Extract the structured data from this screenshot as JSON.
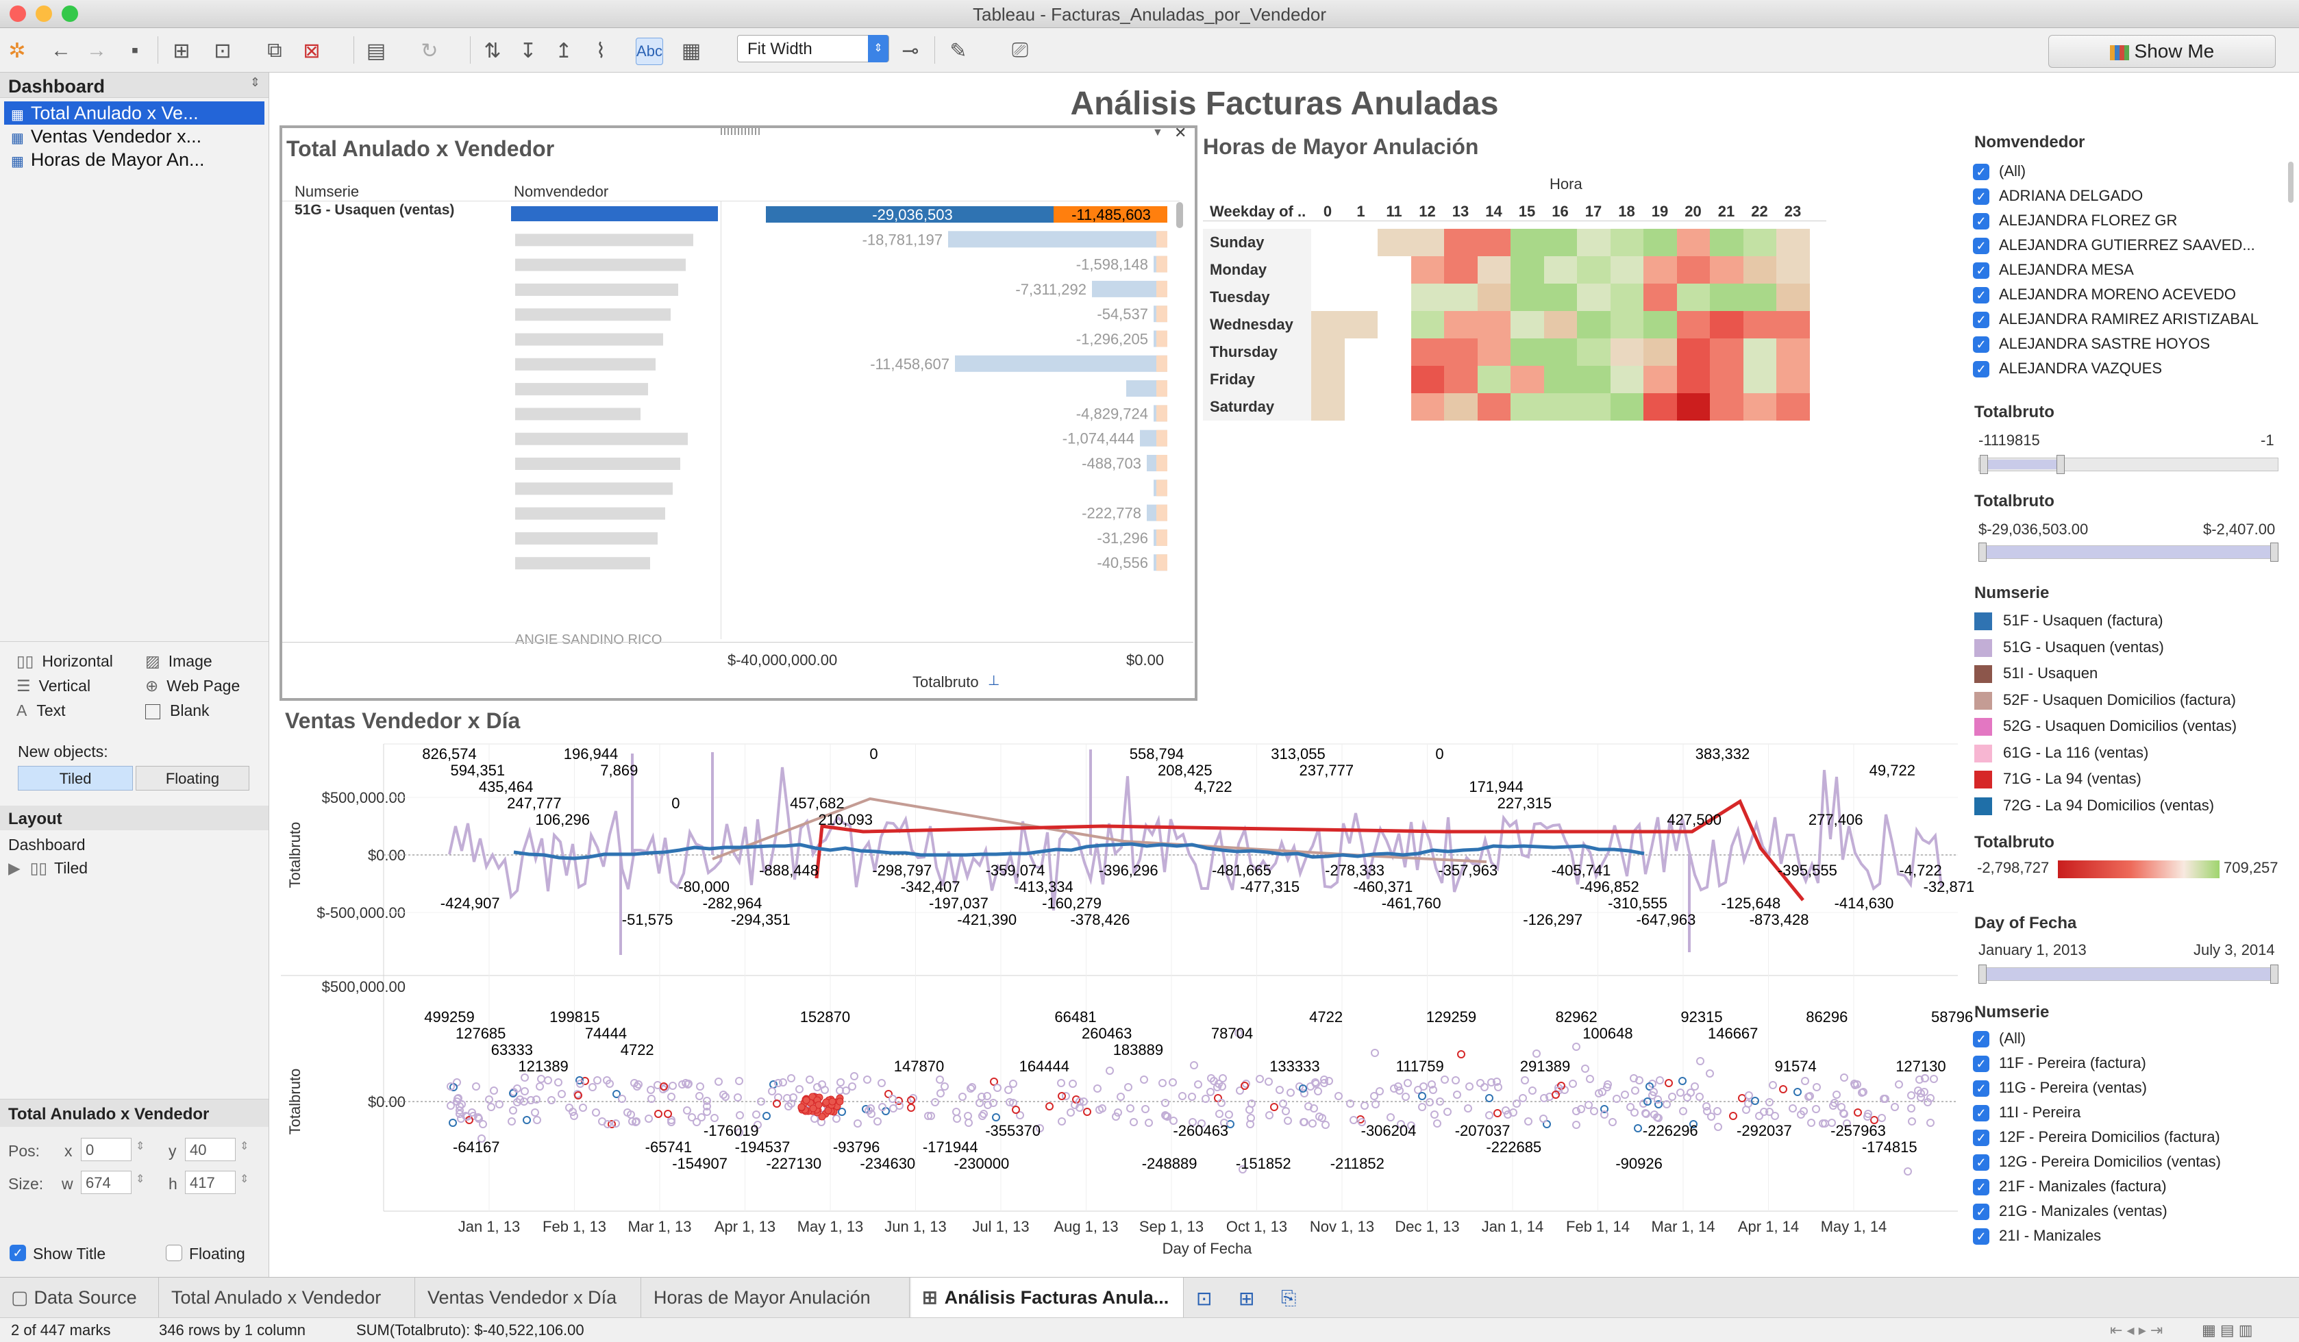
{
  "window": {
    "title": "Tableau - Facturas_Anuladas_por_Vendedor"
  },
  "toolbar": {
    "fit_value": "Fit Width",
    "show_me": "Show Me",
    "abc": "Abc"
  },
  "left_pane": {
    "dashboard_header": "Dashboard",
    "sheets": [
      "Total Anulado x Ve...",
      "Ventas Vendedor x...",
      "Horas de Mayor An..."
    ],
    "objects": [
      "Horizontal",
      "Image",
      "Vertical",
      "Web Page",
      "Text",
      "Blank"
    ],
    "new_objects_label": "New objects:",
    "tiled": "Tiled",
    "floating": "Floating",
    "layout_header": "Layout",
    "layout_tree": [
      "Dashboard",
      "Tiled"
    ],
    "selected_zone": "Total Anulado x Vendedor",
    "pos_label": "Pos:",
    "size_label": "Size:",
    "x_label": "x",
    "y_label": "y",
    "w_label": "w",
    "h_label": "h",
    "x": "0",
    "y": "40",
    "w": "674",
    "h": "417",
    "show_title": "Show Title",
    "floating_cb": "Floating"
  },
  "dashboard": {
    "title": "Análisis Facturas Anuladas"
  },
  "total_anulado": {
    "title": "Total Anulado x Vendedor",
    "col_numserie": "Numserie",
    "col_nomvendedor": "Nomvendedor",
    "numserie_value": "51G - Usaquen (ventas)",
    "last_name_partial": "ANGIE SANDINO RICO",
    "axis_left": "$-40,000,000.00",
    "axis_right": "$0.00",
    "axis_title": "Totalbruto",
    "top_bar_blue": "-29,036,503",
    "top_bar_orange": "-11,485,603",
    "values": [
      "-18,781,197",
      "-1,598,148",
      "-7,311,292",
      "-54,537",
      "-1,296,205",
      "-11,458,607",
      "",
      "-4,829,724",
      "-1,074,444",
      "-488,703",
      "",
      "-222,778",
      "-31,296",
      "-40,556"
    ]
  },
  "heatmap": {
    "title": "Horas de Mayor Anulación",
    "col_title": "Hora",
    "row_title": "Weekday of ..",
    "hours": [
      "0",
      "1",
      "11",
      "12",
      "13",
      "14",
      "15",
      "16",
      "17",
      "18",
      "19",
      "20",
      "21",
      "22",
      "23"
    ],
    "days": [
      "Sunday",
      "Monday",
      "Tuesday",
      "Wednesday",
      "Thursday",
      "Friday",
      "Saturday"
    ]
  },
  "ventas": {
    "title": "Ventas Vendedor x Día",
    "y_axis_title": "Totalbruto",
    "x_axis_title": "Day of Fecha",
    "top_ticks": [
      "$500,000.00",
      "$0.00",
      "$-500,000.00"
    ],
    "bottom_ticks": [
      "$500,000.00",
      "$0.00"
    ],
    "months": [
      "Jan 1, 13",
      "Feb 1, 13",
      "Mar 1, 13",
      "Apr 1, 13",
      "May 1, 13",
      "Jun 1, 13",
      "Jul 1, 13",
      "Aug 1, 13",
      "Sep 1, 13",
      "Oct 1, 13",
      "Nov 1, 13",
      "Dec 1, 13",
      "Jan 1, 14",
      "Feb 1, 14",
      "Mar 1, 14",
      "Apr 1, 14",
      "May 1, 14"
    ],
    "top_labels": [
      "826,574",
      "594,351",
      "435,464",
      "247,777",
      "106,296",
      "196,944",
      "7,869",
      "-51,575",
      "0",
      "-80,000",
      "-282,964",
      "-294,351",
      "-888,448",
      "457,682",
      "210,093",
      "0",
      "-298,797",
      "-342,407",
      "-197,037",
      "-421,390",
      "-359,074",
      "-413,334",
      "-160,279",
      "-378,426",
      "-396,296",
      "558,794",
      "208,425",
      "4,722",
      "-481,665",
      "-477,315",
      "313,055",
      "237,777",
      "-278,333",
      "-460,371",
      "-461,760",
      "0",
      "-357,963",
      "171,944",
      "227,315",
      "-126,297",
      "-405,741",
      "-496,852",
      "-310,555",
      "-647,963",
      "427,500",
      "383,332",
      "-125,648",
      "-873,428",
      "-395,555",
      "277,406",
      "-414,630",
      "49,722",
      "-4,722",
      "-32,871",
      "-424,907"
    ],
    "bottom_labels": [
      "499259",
      "127685",
      "63333",
      "121389",
      "199815",
      "74444",
      "4722",
      "-65741",
      "-154907",
      "-176019",
      "-194537",
      "-227130",
      "152870",
      "-93796",
      "-234630",
      "147870",
      "-171944",
      "-230000",
      "-355370",
      "164444",
      "66481",
      "260463",
      "183889",
      "-248889",
      "-260463",
      "78704",
      "-151852",
      "133333",
      "4722",
      "-211852",
      "-306204",
      "111759",
      "129259",
      "-207037",
      "-222685",
      "291389",
      "82962",
      "100648",
      "-90926",
      "-226296",
      "92315",
      "146667",
      "-292037",
      "91574",
      "86296",
      "-257963",
      "-174815",
      "127130",
      "58796",
      "-64167"
    ]
  },
  "legend": {
    "nomvendedor_header": "Nomvendedor",
    "nomvendedor_items": [
      "(All)",
      "ADRIANA DELGADO",
      "ALEJANDRA FLOREZ GR",
      "ALEJANDRA GUTIERREZ SAAVED...",
      "ALEJANDRA MESA",
      "ALEJANDRA MORENO ACEVEDO",
      "ALEJANDRA RAMIREZ ARISTIZABAL",
      "ALEJANDRA SASTRE HOYOS",
      "ALEJANDRA VAZQUES"
    ],
    "totalbruto1_header": "Totalbruto",
    "totalbruto1_min": "-1119815",
    "totalbruto1_max": "-1",
    "totalbruto2_header": "Totalbruto",
    "totalbruto2_min": "$-29,036,503.00",
    "totalbruto2_max": "$-2,407.00",
    "numserie_header": "Numserie",
    "numserie_colors": [
      {
        "label": "51F - Usaquen (factura)",
        "color": "#2f73b2"
      },
      {
        "label": "51G - Usaquen (ventas)",
        "color": "#c2aed6"
      },
      {
        "label": "51I - Usaquen",
        "color": "#8c564b"
      },
      {
        "label": "52F - Usaquen Domicilios (factura)",
        "color": "#c49c94"
      },
      {
        "label": "52G - Usaquen Domicilios (ventas)",
        "color": "#e377c2"
      },
      {
        "label": "61G - La 116 (ventas)",
        "color": "#f7b6d2"
      },
      {
        "label": "71G - La 94 (ventas)",
        "color": "#d62728"
      },
      {
        "label": "72G - La 94 Domicilios (ventas)",
        "color": "#1f6fa8"
      }
    ],
    "totalbruto3_header": "Totalbruto",
    "totalbruto3_min": "-2,798,727",
    "totalbruto3_max": "709,257",
    "day_header": "Day of Fecha",
    "day_min": "January 1, 2013",
    "day_max": "July 3, 2014",
    "numserie2_header": "Numserie",
    "numserie2_items": [
      "(All)",
      "11F - Pereira (factura)",
      "11G - Pereira (ventas)",
      "11I - Pereira",
      "12F - Pereira Domicilios (factura)",
      "12G - Pereira Domicilios (ventas)",
      "21F - Manizales (factura)",
      "21G - Manizales (ventas)",
      "21I - Manizales"
    ]
  },
  "tabs": [
    "Data Source",
    "Total Anulado x Vendedor",
    "Ventas Vendedor x Día",
    "Horas de Mayor Anulación",
    "Análisis Facturas Anula..."
  ],
  "status": {
    "marks": "2 of 447 marks",
    "rows": "346 rows by 1 column",
    "sum": "SUM(Totalbruto): $-40,522,106.00"
  }
}
